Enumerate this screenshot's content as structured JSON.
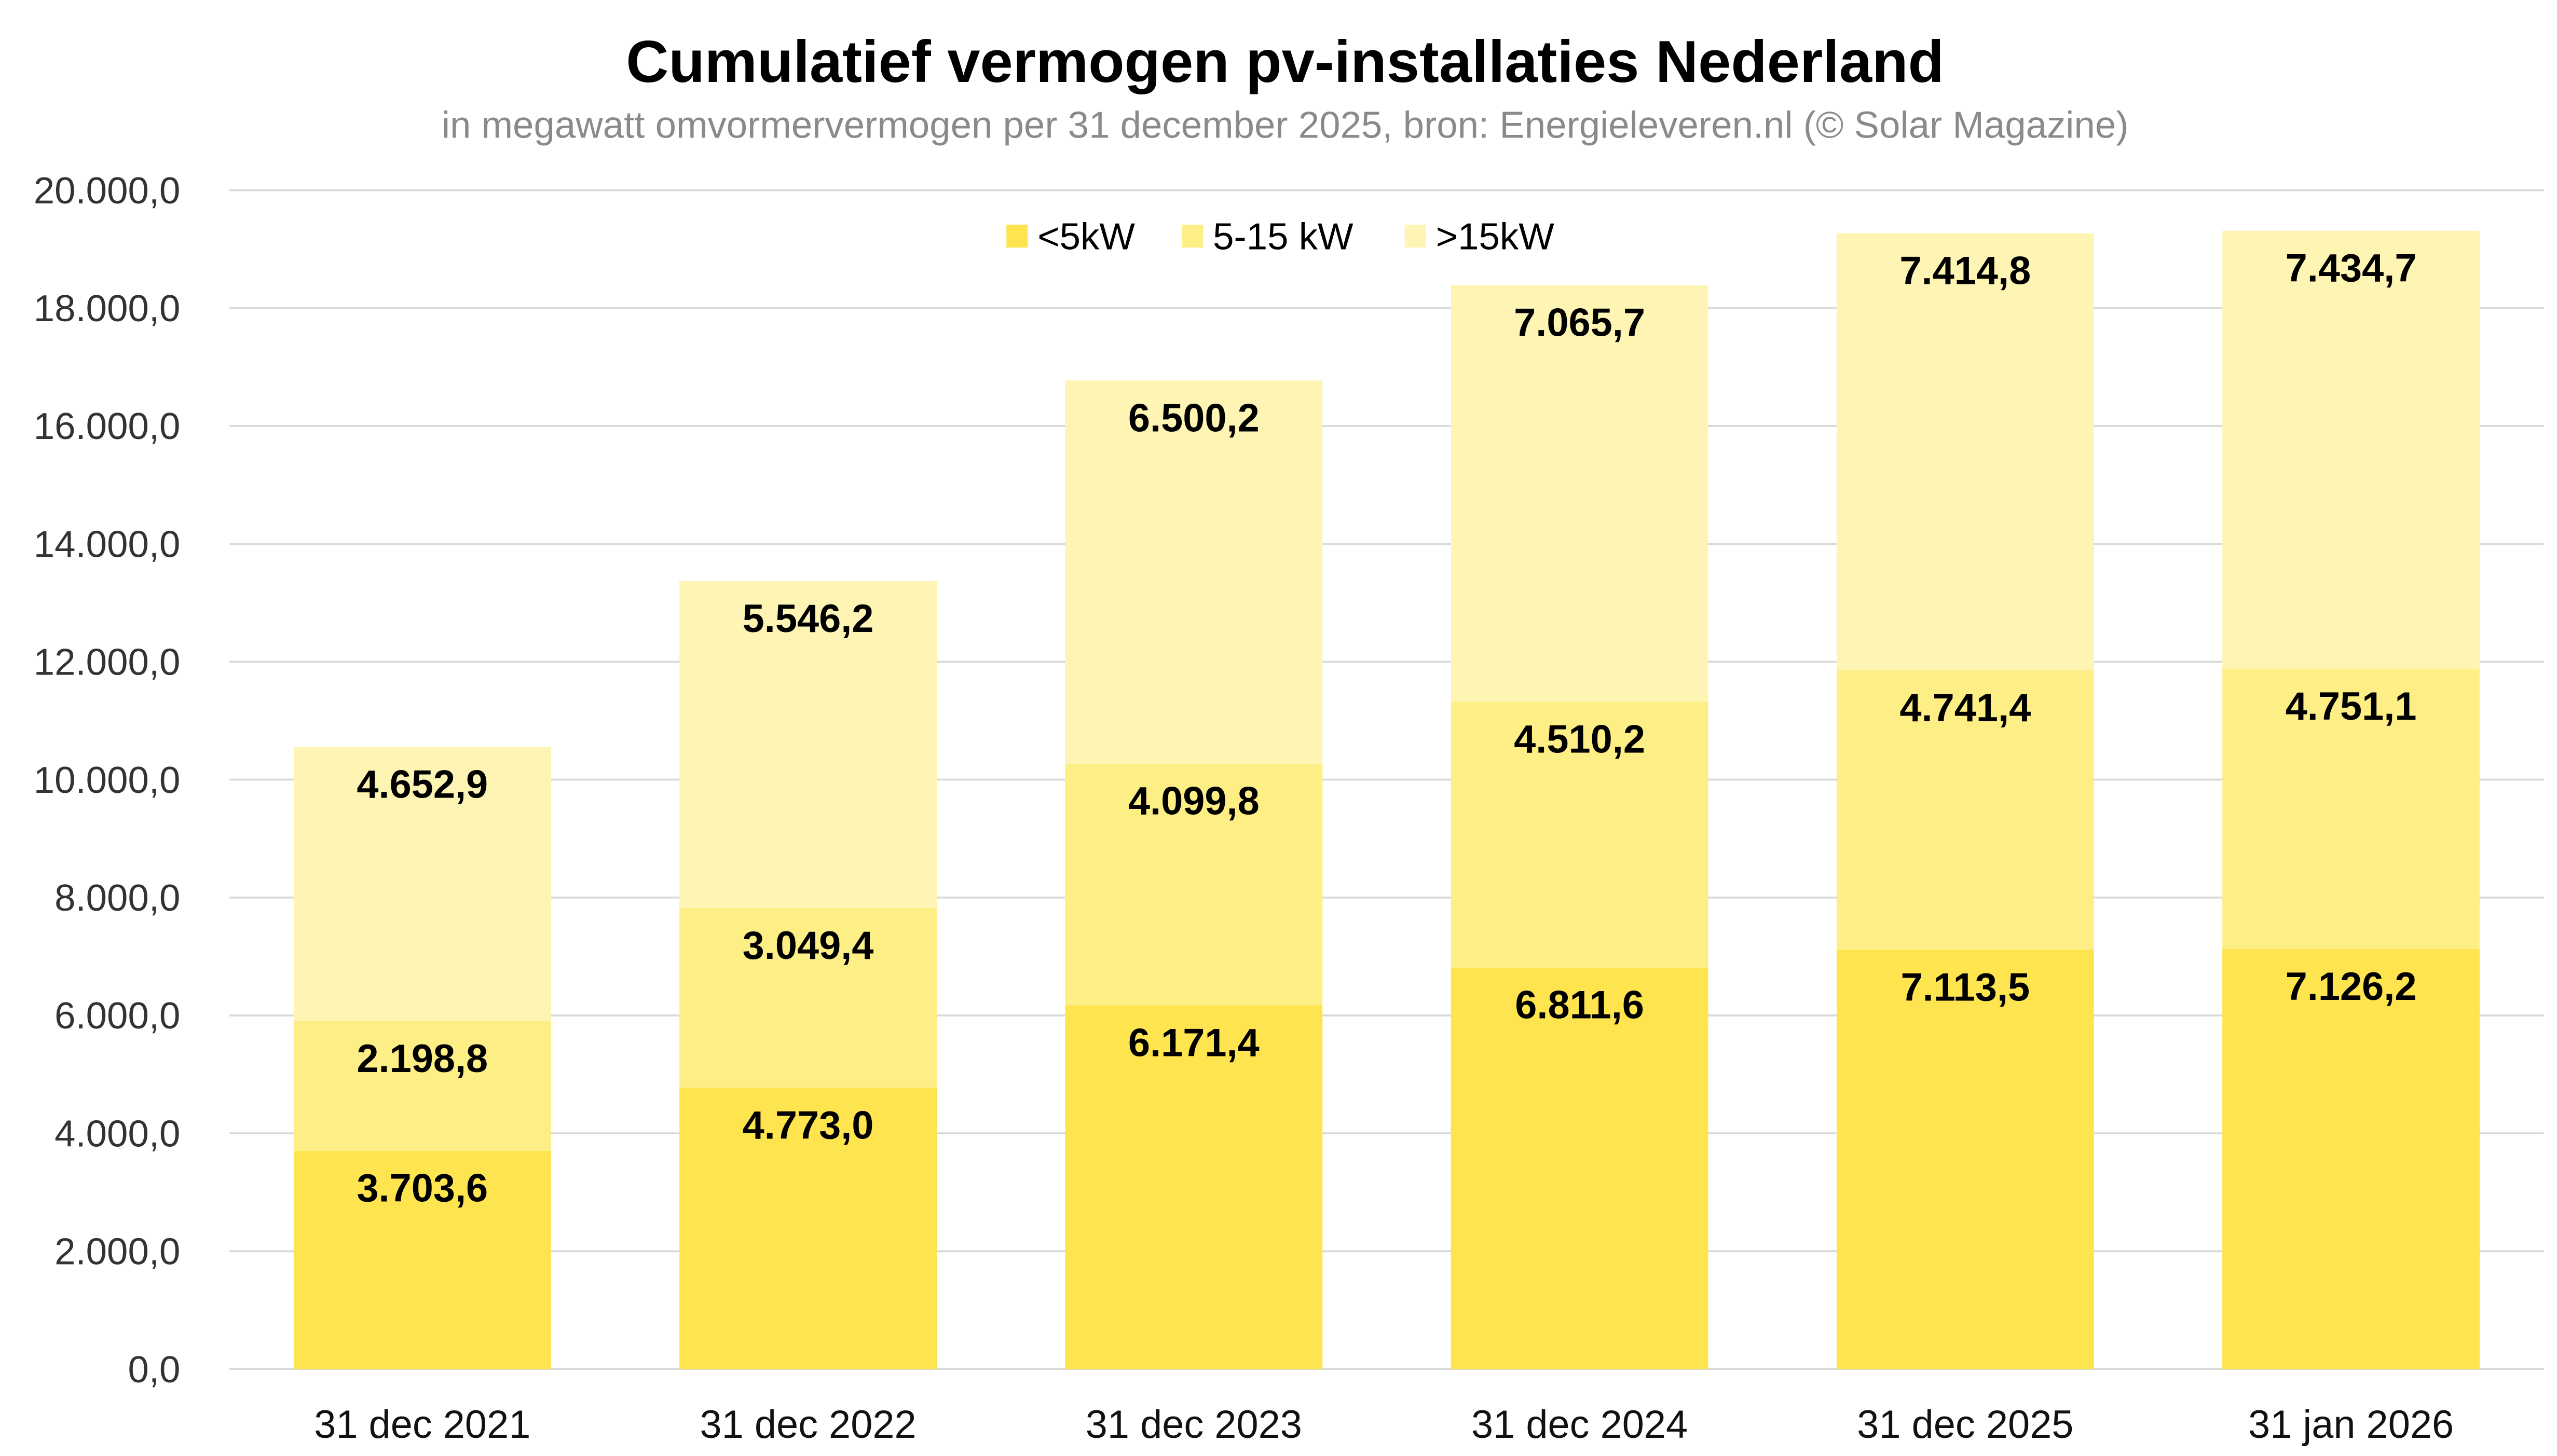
{
  "chart_data": {
    "type": "bar",
    "stacked": true,
    "title": "Cumulatief vermogen pv-installaties Nederland",
    "subtitle": "in megawatt omvormervermogen per 31 december 2025, bron: Energieleveren.nl (© Solar Magazine)",
    "xlabel": "",
    "ylabel": "",
    "ylim": [
      0,
      20000
    ],
    "yticks": [
      "0,0",
      "2.000,0",
      "4.000,0",
      "6.000,0",
      "8.000,0",
      "10.000,0",
      "12.000,0",
      "14.000,0",
      "16.000,0",
      "18.000,0",
      "20.000,0"
    ],
    "grid": true,
    "legend_position": "top-center",
    "categories": [
      "31 dec 2021",
      "31 dec 2022",
      "31 dec 2023",
      "31 dec 2024",
      "31 dec 2025",
      "31 jan 2026"
    ],
    "series": [
      {
        "name": "<5kW",
        "color": "#FEE44E",
        "values": [
          3703.6,
          4773.0,
          6171.4,
          6811.6,
          7113.5,
          7126.2
        ],
        "labels": [
          "3.703,6",
          "4.773,0",
          "6.171,4",
          "6.811,6",
          "7.113,5",
          "7.126,2"
        ]
      },
      {
        "name": "5-15 kW",
        "color": "#FDEE85",
        "values": [
          2198.8,
          3049.4,
          4099.8,
          4510.2,
          4741.4,
          4751.1
        ],
        "labels": [
          "2.198,8",
          "3.049,4",
          "4.099,8",
          "4.510,2",
          "4.741,4",
          "4.751,1"
        ]
      },
      {
        "name": ">15kW",
        "color": "#FEF4B3",
        "values": [
          4652.9,
          5546.2,
          6500.2,
          7065.7,
          7414.8,
          7434.7
        ],
        "labels": [
          "4.652,9",
          "5.546,2",
          "6.500,2",
          "7.065,7",
          "7.414,8",
          "7.434,7"
        ]
      }
    ]
  }
}
